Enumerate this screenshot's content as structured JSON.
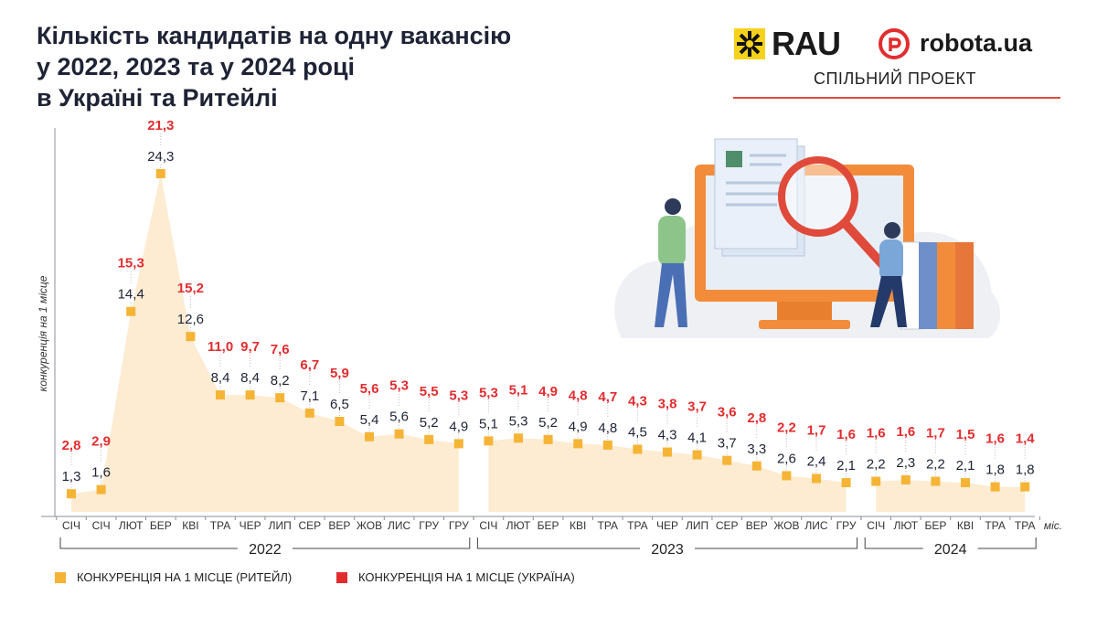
{
  "title_lines": [
    "Кількість кандидатів на одну вакансію",
    "у 2022, 2023 та у 2024 році",
    "в Україні та Ритейлі"
  ],
  "logos": {
    "rau": "RAU",
    "robota": "robota.ua",
    "joint": "СПІЛЬНИЙ ПРОЕКТ"
  },
  "colors": {
    "retail": "#f5b435",
    "ukraine": "#e22d2f",
    "area": "#fdecd2",
    "text": "#1e2335",
    "axis": "#8a8f9c"
  },
  "illustration": "people-searching-candidates-on-computer-screen",
  "chart_data": {
    "type": "area",
    "ylabel": "конкуренція на 1 місце",
    "xlabel": "міс.",
    "ylim": [
      0,
      27
    ],
    "grid": false,
    "segments": [
      {
        "year": "2022",
        "months": [
          "СІЧ",
          "СІЧ",
          "ЛЮТ",
          "БЕР",
          "КВІ",
          "ТРА",
          "ЧЕР",
          "ЛИП",
          "СЕР",
          "ВЕР",
          "ЖОВ",
          "ЛИС",
          "ГРУ",
          "ГРУ"
        ],
        "retail": [
          1.3,
          1.6,
          14.4,
          24.3,
          12.6,
          8.4,
          8.4,
          8.2,
          7.1,
          6.5,
          5.4,
          5.6,
          5.2,
          4.9
        ],
        "ukraine": [
          2.8,
          2.9,
          15.3,
          21.3,
          15.2,
          11.0,
          9.7,
          7.6,
          6.7,
          5.9,
          5.6,
          5.3,
          5.5,
          5.3
        ]
      },
      {
        "year": "2023",
        "months": [
          "СІЧ",
          "ЛЮТ",
          "БЕР",
          "КВІ",
          "ТРА",
          "ТРА",
          "ЧЕР",
          "ЛИП",
          "СЕР",
          "ВЕР",
          "ЖОВ",
          "ЛИС",
          "ГРУ"
        ],
        "retail": [
          5.1,
          5.3,
          5.2,
          4.9,
          4.8,
          4.5,
          4.3,
          4.1,
          3.7,
          3.3,
          2.6,
          2.4,
          2.1
        ],
        "ukraine": [
          5.3,
          5.1,
          4.9,
          4.8,
          4.7,
          4.3,
          3.8,
          3.7,
          3.6,
          2.8,
          2.2,
          1.7,
          1.6
        ]
      },
      {
        "year": "2024",
        "months": [
          "СІЧ",
          "ЛЮТ",
          "БЕР",
          "КВІ",
          "ТРА",
          "ТРА"
        ],
        "retail": [
          2.2,
          2.3,
          2.2,
          2.1,
          1.8,
          1.8
        ],
        "ukraine": [
          1.6,
          1.6,
          1.7,
          1.5,
          1.6,
          1.4
        ]
      }
    ],
    "legend": [
      {
        "label": "КОНКУРЕНЦІЯ НА 1 МІСЦЕ (РИТЕЙЛ)",
        "series": "retail"
      },
      {
        "label": "КОНКУРЕНЦІЯ НА 1 МІСЦЕ (УКРАЇНА)",
        "series": "ukraine"
      }
    ],
    "legend_position": "bottom-left"
  }
}
